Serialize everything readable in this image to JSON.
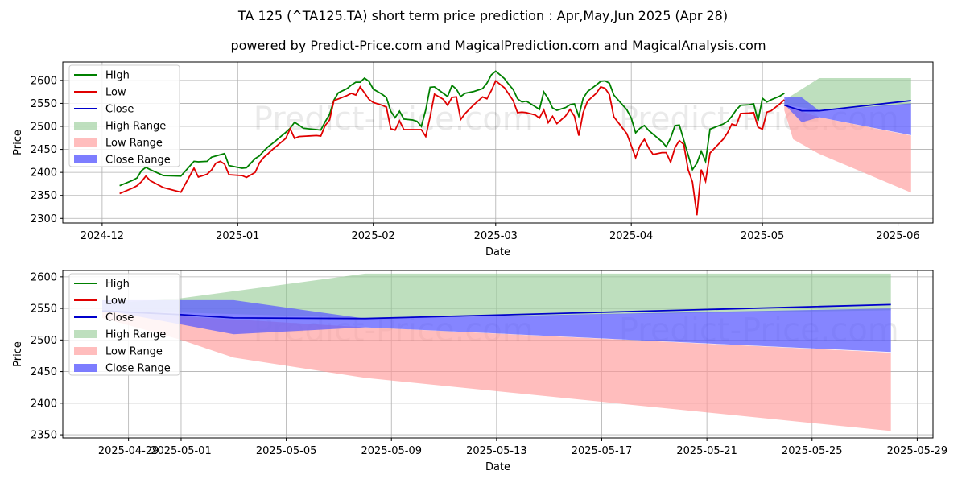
{
  "header": {
    "title": "TA 125 (^TA125.TA) short term price prediction : Apr,May,Jun 2025 (Apr 28)",
    "subtitle": "powered by Predict-Price.com and MagicalPrediction.com and MagicalAnalysis.com"
  },
  "watermark": "Predict-Price.com",
  "colors": {
    "high": "#008000",
    "low": "#e00000",
    "close": "#0000cc",
    "high_range": "#93c993",
    "low_range": "#ff9a9a",
    "close_range": "#5c5cff",
    "grid": "#b0b0b0"
  },
  "chart_data": [
    {
      "type": "line",
      "name": "top",
      "xlabel": "Date",
      "ylabel": "Price",
      "ylim": [
        2290,
        2640
      ],
      "yticks": [
        2300,
        2350,
        2400,
        2450,
        2500,
        2550,
        2600
      ],
      "xticks": [
        "2024-12",
        "2025-01",
        "2025-02",
        "2025-03",
        "2025-04",
        "2025-05",
        "2025-06"
      ],
      "legend": [
        "High",
        "Low",
        "Close",
        "High Range",
        "Low Range",
        "Close Range"
      ],
      "legend_position": "top-left",
      "history_high": [
        [
          "2024-12-05",
          2371
        ],
        [
          "2024-12-08",
          2383
        ],
        [
          "2024-12-09",
          2388
        ],
        [
          "2024-12-10",
          2404
        ],
        [
          "2024-12-11",
          2411
        ],
        [
          "2024-12-12",
          2406
        ],
        [
          "2024-12-15",
          2393
        ],
        [
          "2024-12-19",
          2392
        ],
        [
          "2024-12-22",
          2424
        ],
        [
          "2024-12-23",
          2423
        ],
        [
          "2024-12-25",
          2424
        ],
        [
          "2024-12-26",
          2433
        ],
        [
          "2024-12-29",
          2441
        ],
        [
          "2024-12-30",
          2415
        ],
        [
          "2025-01-02",
          2409
        ],
        [
          "2025-01-03",
          2410
        ],
        [
          "2025-01-05",
          2430
        ],
        [
          "2025-01-06",
          2436
        ],
        [
          "2025-01-07",
          2447
        ],
        [
          "2025-01-08",
          2456
        ],
        [
          "2025-01-09",
          2463
        ],
        [
          "2025-01-12",
          2487
        ],
        [
          "2025-01-13",
          2496
        ],
        [
          "2025-01-14",
          2509
        ],
        [
          "2025-01-15",
          2503
        ],
        [
          "2025-01-16",
          2496
        ],
        [
          "2025-01-19",
          2493
        ],
        [
          "2025-01-20",
          2492
        ],
        [
          "2025-01-21",
          2510
        ],
        [
          "2025-01-22",
          2526
        ],
        [
          "2025-01-23",
          2557
        ],
        [
          "2025-01-24",
          2573
        ],
        [
          "2025-01-26",
          2582
        ],
        [
          "2025-01-27",
          2590
        ],
        [
          "2025-01-28",
          2596
        ],
        [
          "2025-01-29",
          2596
        ],
        [
          "2025-01-30",
          2605
        ],
        [
          "2025-01-31",
          2598
        ],
        [
          "2025-02-01",
          2581
        ],
        [
          "2025-02-03",
          2570
        ],
        [
          "2025-02-04",
          2563
        ],
        [
          "2025-02-05",
          2533
        ],
        [
          "2025-02-06",
          2519
        ],
        [
          "2025-02-07",
          2533
        ],
        [
          "2025-02-08",
          2516
        ],
        [
          "2025-02-10",
          2514
        ],
        [
          "2025-02-11",
          2511
        ],
        [
          "2025-02-12",
          2500
        ],
        [
          "2025-02-13",
          2536
        ],
        [
          "2025-02-14",
          2585
        ],
        [
          "2025-02-15",
          2586
        ],
        [
          "2025-02-17",
          2572
        ],
        [
          "2025-02-18",
          2565
        ],
        [
          "2025-02-19",
          2589
        ],
        [
          "2025-02-20",
          2581
        ],
        [
          "2025-02-21",
          2565
        ],
        [
          "2025-02-22",
          2572
        ],
        [
          "2025-02-24",
          2576
        ],
        [
          "2025-02-26",
          2582
        ],
        [
          "2025-02-27",
          2594
        ],
        [
          "2025-02-28",
          2612
        ],
        [
          "2025-03-01",
          2620
        ],
        [
          "2025-03-03",
          2604
        ],
        [
          "2025-03-04",
          2591
        ],
        [
          "2025-03-05",
          2580
        ],
        [
          "2025-03-06",
          2560
        ],
        [
          "2025-03-07",
          2553
        ],
        [
          "2025-03-08",
          2555
        ],
        [
          "2025-03-10",
          2543
        ],
        [
          "2025-03-11",
          2537
        ],
        [
          "2025-03-12",
          2575
        ],
        [
          "2025-03-13",
          2560
        ],
        [
          "2025-03-14",
          2540
        ],
        [
          "2025-03-15",
          2535
        ],
        [
          "2025-03-17",
          2541
        ],
        [
          "2025-03-18",
          2547
        ],
        [
          "2025-03-19",
          2549
        ],
        [
          "2025-03-20",
          2522
        ],
        [
          "2025-03-21",
          2561
        ],
        [
          "2025-03-22",
          2576
        ],
        [
          "2025-03-24",
          2590
        ],
        [
          "2025-03-25",
          2598
        ],
        [
          "2025-03-26",
          2599
        ],
        [
          "2025-03-27",
          2594
        ],
        [
          "2025-03-28",
          2568
        ],
        [
          "2025-03-31",
          2536
        ],
        [
          "2025-04-01",
          2518
        ],
        [
          "2025-04-02",
          2486
        ],
        [
          "2025-04-03",
          2496
        ],
        [
          "2025-04-04",
          2502
        ],
        [
          "2025-04-05",
          2491
        ],
        [
          "2025-04-08",
          2467
        ],
        [
          "2025-04-09",
          2456
        ],
        [
          "2025-04-10",
          2475
        ],
        [
          "2025-04-11",
          2502
        ],
        [
          "2025-04-12",
          2503
        ],
        [
          "2025-04-15",
          2406
        ],
        [
          "2025-04-16",
          2420
        ],
        [
          "2025-04-17",
          2446
        ],
        [
          "2025-04-18",
          2424
        ],
        [
          "2025-04-19",
          2494
        ],
        [
          "2025-04-22",
          2505
        ],
        [
          "2025-04-23",
          2511
        ],
        [
          "2025-04-24",
          2522
        ],
        [
          "2025-04-25",
          2536
        ],
        [
          "2025-04-26",
          2546
        ],
        [
          "2025-04-28",
          2547
        ],
        [
          "2025-04-29",
          2549
        ],
        [
          "2025-04-30",
          2512
        ],
        [
          "2025-05-01",
          2561
        ],
        [
          "2025-05-02",
          2553
        ],
        [
          "2025-05-03",
          2558
        ],
        [
          "2025-05-05",
          2566
        ],
        [
          "2025-05-06",
          2572
        ]
      ],
      "history_low": [
        [
          "2024-12-05",
          2354
        ],
        [
          "2024-12-08",
          2366
        ],
        [
          "2024-12-09",
          2371
        ],
        [
          "2024-12-10",
          2380
        ],
        [
          "2024-12-11",
          2392
        ],
        [
          "2024-12-12",
          2382
        ],
        [
          "2024-12-15",
          2367
        ],
        [
          "2024-12-19",
          2357
        ],
        [
          "2024-12-22",
          2409
        ],
        [
          "2024-12-23",
          2390
        ],
        [
          "2024-12-25",
          2396
        ],
        [
          "2024-12-26",
          2405
        ],
        [
          "2024-12-27",
          2420
        ],
        [
          "2024-12-28",
          2424
        ],
        [
          "2024-12-29",
          2418
        ],
        [
          "2024-12-30",
          2395
        ],
        [
          "2025-01-02",
          2393
        ],
        [
          "2025-01-03",
          2389
        ],
        [
          "2025-01-05",
          2400
        ],
        [
          "2025-01-06",
          2421
        ],
        [
          "2025-01-07",
          2433
        ],
        [
          "2025-01-08",
          2441
        ],
        [
          "2025-01-09",
          2450
        ],
        [
          "2025-01-12",
          2474
        ],
        [
          "2025-01-13",
          2495
        ],
        [
          "2025-01-14",
          2474
        ],
        [
          "2025-01-15",
          2478
        ],
        [
          "2025-01-19",
          2480
        ],
        [
          "2025-01-20",
          2479
        ],
        [
          "2025-01-21",
          2502
        ],
        [
          "2025-01-22",
          2514
        ],
        [
          "2025-01-23",
          2556
        ],
        [
          "2025-01-26",
          2567
        ],
        [
          "2025-01-27",
          2572
        ],
        [
          "2025-01-28",
          2568
        ],
        [
          "2025-01-29",
          2586
        ],
        [
          "2025-01-31",
          2559
        ],
        [
          "2025-02-01",
          2552
        ],
        [
          "2025-02-03",
          2546
        ],
        [
          "2025-02-04",
          2542
        ],
        [
          "2025-02-05",
          2495
        ],
        [
          "2025-02-06",
          2492
        ],
        [
          "2025-02-07",
          2512
        ],
        [
          "2025-02-08",
          2493
        ],
        [
          "2025-02-12",
          2493
        ],
        [
          "2025-02-13",
          2478
        ],
        [
          "2025-02-14",
          2521
        ],
        [
          "2025-02-15",
          2570
        ],
        [
          "2025-02-17",
          2559
        ],
        [
          "2025-02-18",
          2546
        ],
        [
          "2025-02-19",
          2563
        ],
        [
          "2025-02-20",
          2564
        ],
        [
          "2025-02-21",
          2515
        ],
        [
          "2025-02-22",
          2528
        ],
        [
          "2025-02-24",
          2547
        ],
        [
          "2025-02-26",
          2564
        ],
        [
          "2025-02-27",
          2560
        ],
        [
          "2025-02-28",
          2578
        ],
        [
          "2025-03-01",
          2599
        ],
        [
          "2025-03-03",
          2584
        ],
        [
          "2025-03-04",
          2570
        ],
        [
          "2025-03-05",
          2556
        ],
        [
          "2025-03-06",
          2530
        ],
        [
          "2025-03-07",
          2531
        ],
        [
          "2025-03-08",
          2530
        ],
        [
          "2025-03-10",
          2525
        ],
        [
          "2025-03-11",
          2518
        ],
        [
          "2025-03-12",
          2536
        ],
        [
          "2025-03-13",
          2508
        ],
        [
          "2025-03-14",
          2522
        ],
        [
          "2025-03-15",
          2506
        ],
        [
          "2025-03-17",
          2523
        ],
        [
          "2025-03-18",
          2537
        ],
        [
          "2025-03-19",
          2522
        ],
        [
          "2025-03-20",
          2480
        ],
        [
          "2025-03-21",
          2530
        ],
        [
          "2025-03-22",
          2555
        ],
        [
          "2025-03-24",
          2572
        ],
        [
          "2025-03-25",
          2586
        ],
        [
          "2025-03-26",
          2583
        ],
        [
          "2025-03-27",
          2569
        ],
        [
          "2025-03-28",
          2521
        ],
        [
          "2025-03-31",
          2484
        ],
        [
          "2025-04-01",
          2458
        ],
        [
          "2025-04-02",
          2432
        ],
        [
          "2025-04-03",
          2458
        ],
        [
          "2025-04-04",
          2472
        ],
        [
          "2025-04-05",
          2453
        ],
        [
          "2025-04-06",
          2439
        ],
        [
          "2025-04-08",
          2443
        ],
        [
          "2025-04-09",
          2443
        ],
        [
          "2025-04-10",
          2422
        ],
        [
          "2025-04-11",
          2454
        ],
        [
          "2025-04-12",
          2469
        ],
        [
          "2025-04-13",
          2461
        ],
        [
          "2025-04-14",
          2406
        ],
        [
          "2025-04-15",
          2379
        ],
        [
          "2025-04-16",
          2307
        ],
        [
          "2025-04-17",
          2406
        ],
        [
          "2025-04-18",
          2381
        ],
        [
          "2025-04-19",
          2442
        ],
        [
          "2025-04-22",
          2472
        ],
        [
          "2025-04-23",
          2486
        ],
        [
          "2025-04-24",
          2505
        ],
        [
          "2025-04-25",
          2502
        ],
        [
          "2025-04-26",
          2528
        ],
        [
          "2025-04-28",
          2529
        ],
        [
          "2025-04-29",
          2530
        ],
        [
          "2025-04-30",
          2498
        ],
        [
          "2025-05-01",
          2494
        ],
        [
          "2025-05-02",
          2531
        ],
        [
          "2025-05-03",
          2534
        ],
        [
          "2025-05-05",
          2549
        ],
        [
          "2025-05-06",
          2558
        ]
      ],
      "forecast_close": [
        [
          "2025-05-06",
          2546
        ],
        [
          "2025-05-10",
          2534
        ],
        [
          "2025-05-14",
          2534
        ],
        [
          "2025-06-04",
          2556
        ]
      ],
      "high_range_upper": [
        [
          "2025-05-06",
          2557
        ],
        [
          "2025-05-14",
          2605
        ],
        [
          "2025-06-04",
          2605
        ]
      ],
      "high_range_lower": [
        [
          "2025-05-06",
          2547
        ],
        [
          "2025-05-14",
          2535
        ],
        [
          "2025-06-04",
          2547
        ]
      ],
      "low_range_upper": [
        [
          "2025-05-06",
          2545
        ],
        [
          "2025-05-14",
          2520
        ],
        [
          "2025-06-04",
          2480
        ]
      ],
      "low_range_lower": [
        [
          "2025-05-06",
          2535
        ],
        [
          "2025-05-08",
          2472
        ],
        [
          "2025-05-14",
          2440
        ],
        [
          "2025-06-04",
          2356
        ]
      ],
      "close_range_upper": [
        [
          "2025-05-06",
          2563
        ],
        [
          "2025-05-10",
          2563
        ],
        [
          "2025-05-14",
          2534
        ],
        [
          "2025-06-04",
          2550
        ]
      ],
      "close_range_lower": [
        [
          "2025-05-06",
          2548
        ],
        [
          "2025-05-10",
          2509
        ],
        [
          "2025-05-14",
          2520
        ],
        [
          "2025-06-04",
          2481
        ]
      ]
    },
    {
      "type": "line",
      "name": "bottom",
      "xlabel": "Date",
      "ylabel": "Price",
      "ylim": [
        2345,
        2610
      ],
      "yticks": [
        2350,
        2400,
        2450,
        2500,
        2550,
        2600
      ],
      "xticks": [
        "2025-04-29",
        "2025-05-01",
        "2025-05-05",
        "2025-05-09",
        "2025-05-13",
        "2025-05-17",
        "2025-05-21",
        "2025-05-25",
        "2025-05-29"
      ],
      "legend": [
        "High",
        "Low",
        "Close",
        "High Range",
        "Low Range",
        "Close Range"
      ],
      "legend_position": "top-left",
      "forecast_close": [
        [
          "2025-04-28",
          2546
        ],
        [
          "2025-05-01",
          2540
        ],
        [
          "2025-05-03",
          2535
        ],
        [
          "2025-05-08",
          2534
        ],
        [
          "2025-05-28",
          2556
        ]
      ],
      "high_range_upper": [
        [
          "2025-04-28",
          2557
        ],
        [
          "2025-05-01",
          2566
        ],
        [
          "2025-05-08",
          2605
        ],
        [
          "2025-05-28",
          2605
        ]
      ],
      "high_range_lower": [
        [
          "2025-04-28",
          2547
        ],
        [
          "2025-05-08",
          2535
        ],
        [
          "2025-05-28",
          2547
        ]
      ],
      "low_range_upper": [
        [
          "2025-04-28",
          2545
        ],
        [
          "2025-05-08",
          2520
        ],
        [
          "2025-05-28",
          2480
        ]
      ],
      "low_range_lower": [
        [
          "2025-04-28",
          2535
        ],
        [
          "2025-05-01",
          2500
        ],
        [
          "2025-05-03",
          2472
        ],
        [
          "2025-05-08",
          2440
        ],
        [
          "2025-05-28",
          2356
        ]
      ],
      "close_range_upper": [
        [
          "2025-04-28",
          2563
        ],
        [
          "2025-05-03",
          2563
        ],
        [
          "2025-05-08",
          2534
        ],
        [
          "2025-05-28",
          2550
        ]
      ],
      "close_range_lower": [
        [
          "2025-04-28",
          2548
        ],
        [
          "2025-05-03",
          2509
        ],
        [
          "2025-05-08",
          2520
        ],
        [
          "2025-05-28",
          2481
        ]
      ]
    }
  ]
}
